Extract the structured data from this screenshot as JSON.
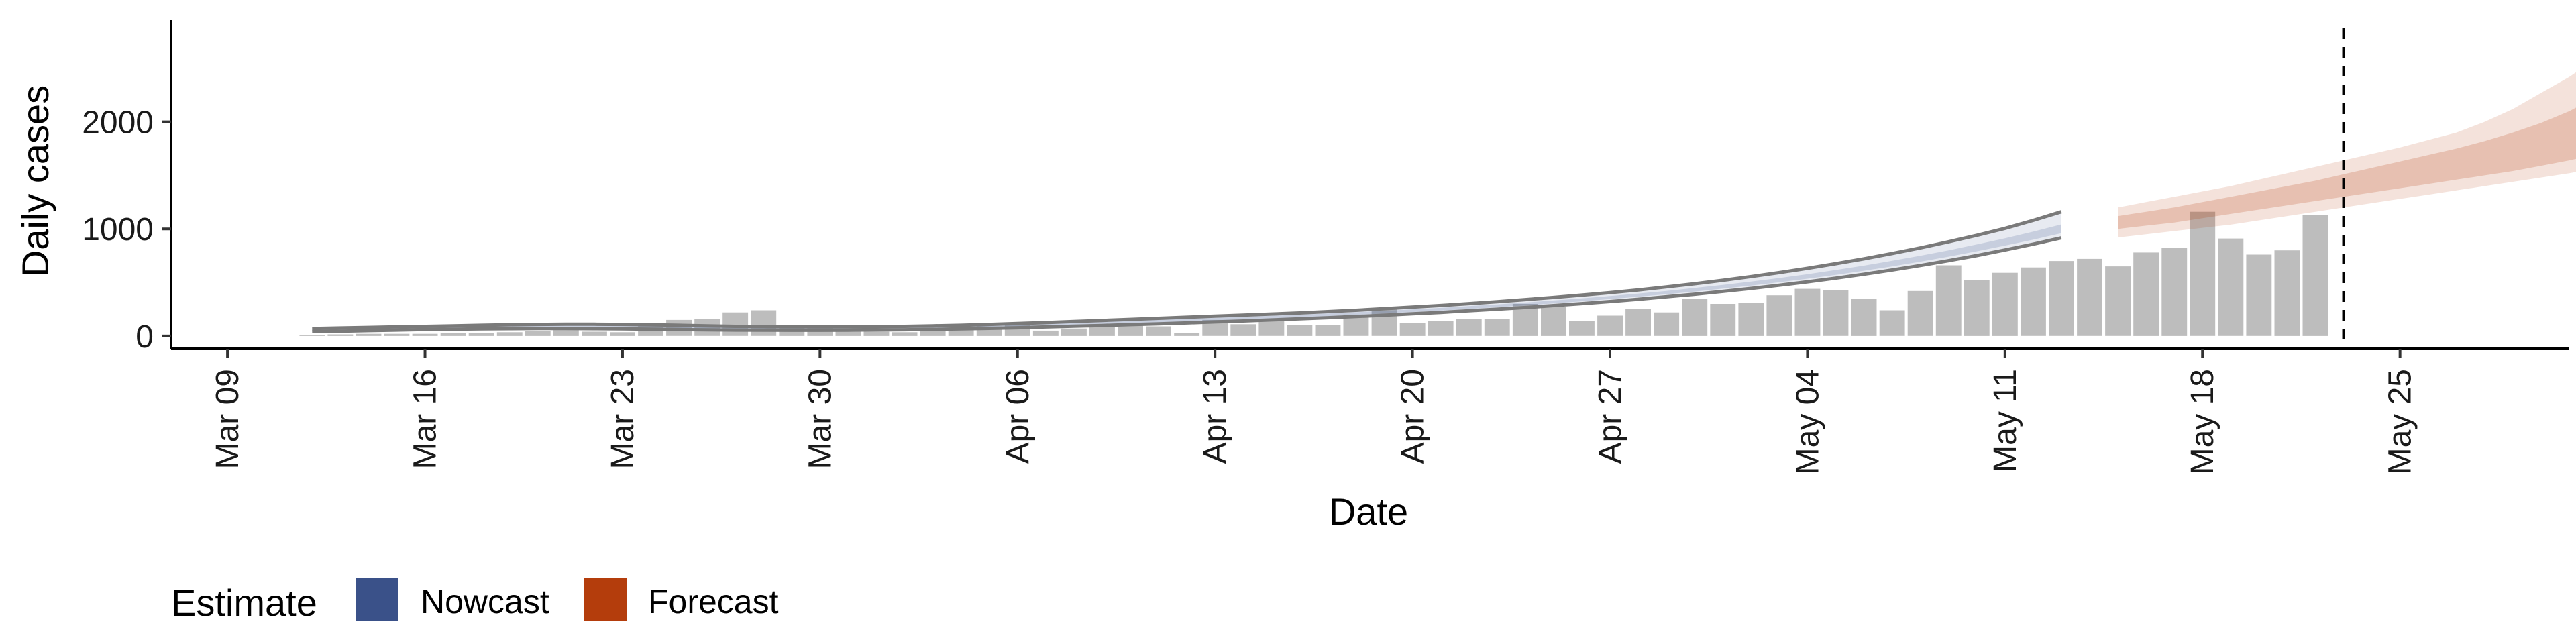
{
  "chart_data": {
    "type": "bar",
    "xlabel": "Date",
    "ylabel": "Daily cases",
    "x_range": [
      "2020-03-07",
      "2020-05-31"
    ],
    "ylim": [
      -120,
      2950
    ],
    "x_ticks": [
      {
        "date": "2020-03-09",
        "label": "Mar 09"
      },
      {
        "date": "2020-03-16",
        "label": "Mar 16"
      },
      {
        "date": "2020-03-23",
        "label": "Mar 23"
      },
      {
        "date": "2020-03-30",
        "label": "Mar 30"
      },
      {
        "date": "2020-04-06",
        "label": "Apr 06"
      },
      {
        "date": "2020-04-13",
        "label": "Apr 13"
      },
      {
        "date": "2020-04-20",
        "label": "Apr 20"
      },
      {
        "date": "2020-04-27",
        "label": "Apr 27"
      },
      {
        "date": "2020-05-04",
        "label": "May 04"
      },
      {
        "date": "2020-05-11",
        "label": "May 11"
      },
      {
        "date": "2020-05-18",
        "label": "May 18"
      },
      {
        "date": "2020-05-25",
        "label": "May 25"
      }
    ],
    "y_ticks": [
      {
        "value": 0,
        "label": "0"
      },
      {
        "value": 1000,
        "label": "1000"
      },
      {
        "value": 2000,
        "label": "2000"
      }
    ],
    "bars": {
      "start_date": "2020-03-12",
      "values": [
        10,
        15,
        20,
        20,
        20,
        25,
        30,
        35,
        45,
        55,
        40,
        35,
        120,
        150,
        160,
        220,
        240,
        90,
        90,
        60,
        40,
        35,
        60,
        70,
        90,
        100,
        50,
        70,
        110,
        110,
        90,
        30,
        150,
        110,
        150,
        100,
        100,
        200,
        260,
        120,
        140,
        160,
        160,
        300,
        270,
        140,
        190,
        250,
        220,
        350,
        300,
        310,
        380,
        440,
        430,
        350,
        240,
        420,
        660,
        520,
        590,
        640,
        700,
        720,
        650,
        780,
        820,
        1160,
        910,
        760,
        800,
        1130
      ]
    },
    "vline_date": "2020-05-23",
    "series": [
      {
        "name": "Nowcast",
        "color": "#3a5189",
        "start_date": "2020-03-12",
        "upper": [
          70,
          75,
          80,
          85,
          90,
          95,
          100,
          105,
          108,
          110,
          110,
          108,
          105,
          100,
          95,
          90,
          88,
          86,
          85,
          85,
          87,
          90,
          95,
          100,
          108,
          116,
          125,
          135,
          145,
          155,
          165,
          175,
          185,
          195,
          205,
          215,
          228,
          240,
          255,
          270,
          285,
          302,
          320,
          340,
          360,
          382,
          405,
          430,
          458,
          488,
          520,
          555,
          592,
          632,
          675,
          720,
          770,
          822,
          880,
          940,
          1005,
          1080,
          1160
        ],
        "lower": [
          40,
          45,
          50,
          55,
          60,
          63,
          66,
          68,
          70,
          70,
          68,
          66,
          63,
          60,
          57,
          55,
          54,
          53,
          53,
          54,
          56,
          58,
          62,
          66,
          71,
          77,
          84,
          91,
          98,
          106,
          114,
          122,
          131,
          140,
          150,
          160,
          171,
          182,
          194,
          207,
          220,
          235,
          250,
          266,
          284,
          302,
          322,
          343,
          366,
          390,
          416,
          444,
          474,
          506,
          540,
          577,
          616,
          658,
          703,
          751,
          803,
          858,
          916
        ],
        "band_inner_upper": [
          62,
          67,
          72,
          77,
          82,
          86,
          90,
          94,
          96,
          98,
          98,
          96,
          94,
          90,
          86,
          82,
          80,
          78,
          78,
          78,
          80,
          83,
          88,
          93,
          100,
          107,
          115,
          124,
          133,
          142,
          151,
          160,
          169,
          179,
          189,
          199,
          211,
          222,
          235,
          249,
          263,
          279,
          295,
          313,
          332,
          352,
          373,
          396,
          421,
          448,
          477,
          508,
          541,
          577,
          616,
          657,
          702,
          749,
          800,
          855,
          912,
          975,
          1042
        ],
        "band_inner_lower": [
          48,
          53,
          58,
          63,
          68,
          72,
          75,
          78,
          80,
          81,
          80,
          78,
          75,
          72,
          68,
          65,
          63,
          62,
          61,
          62,
          64,
          67,
          71,
          75,
          81,
          87,
          94,
          102,
          110,
          118,
          127,
          136,
          145,
          154,
          164,
          174,
          186,
          198,
          211,
          224,
          238,
          253,
          269,
          286,
          305,
          324,
          345,
          367,
          390,
          415,
          442,
          471,
          502,
          535,
          571,
          609,
          650,
          694,
          741,
          791,
          844,
          900,
          960
        ]
      },
      {
        "name": "Forecast",
        "color": "#b43d0c",
        "start_date": "2020-05-15",
        "upper": [
          1200,
          1250,
          1300,
          1350,
          1400,
          1460,
          1520,
          1580,
          1640,
          1700,
          1760,
          1830,
          1900,
          2000,
          2120,
          2270,
          2420,
          2600,
          2820
        ],
        "lower": [
          920,
          950,
          980,
          1010,
          1040,
          1080,
          1120,
          1160,
          1200,
          1240,
          1280,
          1320,
          1360,
          1400,
          1440,
          1480,
          1520,
          1570,
          1620
        ],
        "band_inner_upper": [
          1120,
          1160,
          1200,
          1250,
          1300,
          1350,
          1400,
          1450,
          1510,
          1570,
          1630,
          1690,
          1750,
          1820,
          1900,
          1990,
          2100,
          2240,
          2420
        ],
        "band_inner_lower": [
          1000,
          1030,
          1060,
          1100,
          1140,
          1180,
          1220,
          1260,
          1300,
          1340,
          1380,
          1420,
          1460,
          1500,
          1540,
          1590,
          1640,
          1700,
          1780
        ]
      }
    ],
    "legend": {
      "title": "Estimate",
      "items": [
        {
          "label": "Nowcast",
          "color": "#3a5189"
        },
        {
          "label": "Forecast",
          "color": "#b43d0c"
        }
      ],
      "position": "bottom-left"
    }
  }
}
